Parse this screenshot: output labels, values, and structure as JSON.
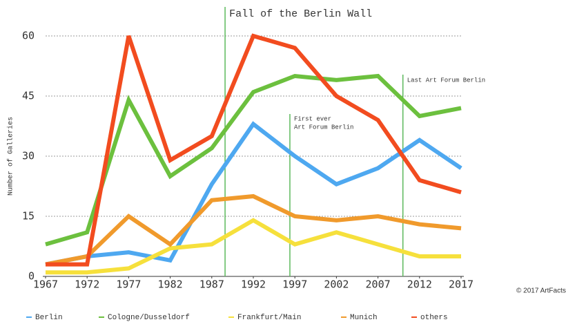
{
  "chart_data": {
    "type": "line",
    "y_label": "Number of Galleries",
    "credit": "© 2017 ArtFacts.Net",
    "x": [
      1967,
      1972,
      1977,
      1982,
      1987,
      1992,
      1997,
      2002,
      2007,
      2012,
      2017
    ],
    "xlim": [
      1967,
      2017
    ],
    "xticks": [
      1967,
      1972,
      1977,
      1982,
      1987,
      1992,
      1997,
      2002,
      2007,
      2012,
      2017
    ],
    "ylim": [
      0,
      60
    ],
    "yticks": [
      0,
      15,
      30,
      45,
      60
    ],
    "grid": true,
    "legend": "bottom",
    "series": [
      {
        "name": "Berlin",
        "color": "#4ea8f0",
        "values": [
          3,
          5,
          6,
          4,
          23,
          38,
          30,
          23,
          27,
          34,
          27
        ]
      },
      {
        "name": "Cologne/Dusseldorf",
        "color": "#6cc03e",
        "values": [
          8,
          11,
          44,
          25,
          32,
          46,
          50,
          49,
          50,
          40,
          42
        ]
      },
      {
        "name": "Frankfurt/Main",
        "color": "#f6e03c",
        "values": [
          1,
          1,
          2,
          7,
          8,
          14,
          8,
          11,
          8,
          5,
          5
        ]
      },
      {
        "name": "Munich",
        "color": "#f09a2c",
        "values": [
          3,
          5,
          15,
          8,
          19,
          20,
          15,
          14,
          15,
          13,
          12
        ]
      },
      {
        "name": "others",
        "color": "#f24c1f",
        "values": [
          3,
          3,
          60,
          29,
          35,
          60,
          57,
          45,
          39,
          24,
          21
        ]
      }
    ],
    "annotations": [
      {
        "x": 1988.6,
        "lines": [
          "Fall of the Berlin Wall"
        ]
      },
      {
        "x": 1996.4,
        "lines": [
          "First ever",
          "Art Forum Berlin"
        ]
      },
      {
        "x": 2010,
        "lines": [
          "Last Art Forum Berlin"
        ]
      }
    ],
    "annotation_color": "#5cb85c"
  }
}
